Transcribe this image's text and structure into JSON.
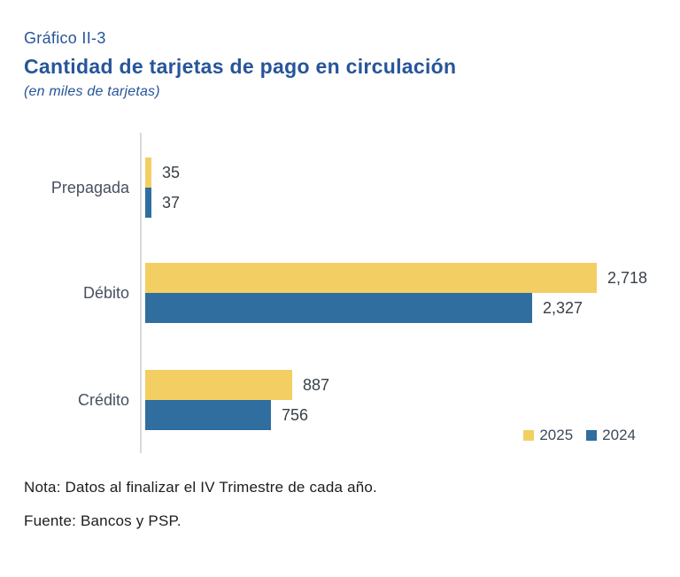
{
  "header": {
    "label": "Gráfico II-3",
    "title": "Cantidad de tarjetas de pago en circulación",
    "subtitle": "(en miles de tarjetas)",
    "text_color": "#27559A"
  },
  "chart_data": {
    "type": "bar",
    "orientation": "horizontal",
    "title": "Cantidad de tarjetas de pago en circulación",
    "units_label": "(en miles de tarjetas)",
    "categories": [
      "Prepagada",
      "Débito",
      "Crédito"
    ],
    "series": [
      {
        "name": "2025",
        "color": "#F2CE63",
        "values": [
          35,
          2718,
          887
        ],
        "value_labels": [
          "35",
          "2,718",
          "887"
        ]
      },
      {
        "name": "2024",
        "color": "#2F6E9E",
        "values": [
          37,
          2327,
          756
        ],
        "value_labels": [
          "37",
          "2,327",
          "756"
        ]
      }
    ],
    "xlim": [
      0,
      2718
    ],
    "grid": false,
    "legend_position": "bottom-right",
    "axis_line_color": "#D9D9D9",
    "category_label_color": "#475060",
    "value_label_color": "#3A4049",
    "legend_text_color": "#3F4A5A"
  },
  "notes": {
    "note": "Nota: Datos al finalizar el IV Trimestre de cada año.",
    "source": "Fuente: Bancos y PSP."
  }
}
